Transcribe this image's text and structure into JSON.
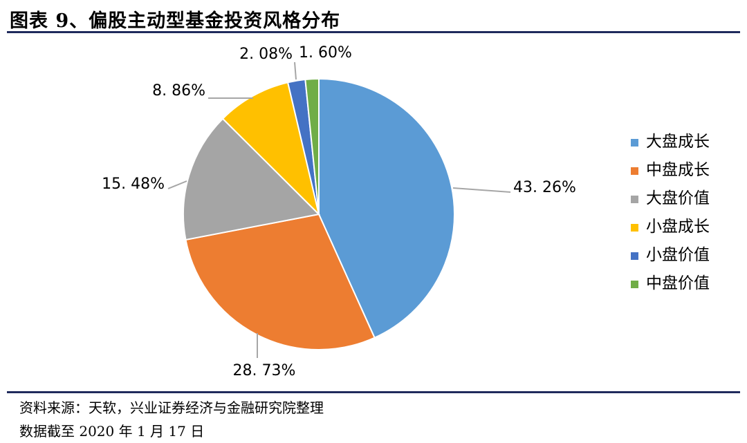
{
  "header": {
    "title": "图表 9、偏股主动型基金投资风格分布"
  },
  "footer": {
    "source": "资料来源：天软，兴业证券经济与金融研究院整理",
    "date_note": "数据截至 2020 年 1 月 17 日"
  },
  "chart_data": {
    "type": "pie",
    "title": "",
    "legend_position": "right",
    "categories": [
      "大盘成长",
      "中盘成长",
      "大盘价值",
      "小盘成长",
      "小盘价值",
      "中盘价值"
    ],
    "values": [
      43.26,
      28.73,
      15.48,
      8.86,
      2.08,
      1.6
    ],
    "labels": [
      "43. 26%",
      "28. 73%",
      "15. 48%",
      "8. 86%",
      "2. 08%",
      "1. 60%"
    ],
    "colors": [
      "#5b9bd5",
      "#ed7d31",
      "#a5a5a5",
      "#ffc000",
      "#4472c4",
      "#70ad47"
    ]
  }
}
